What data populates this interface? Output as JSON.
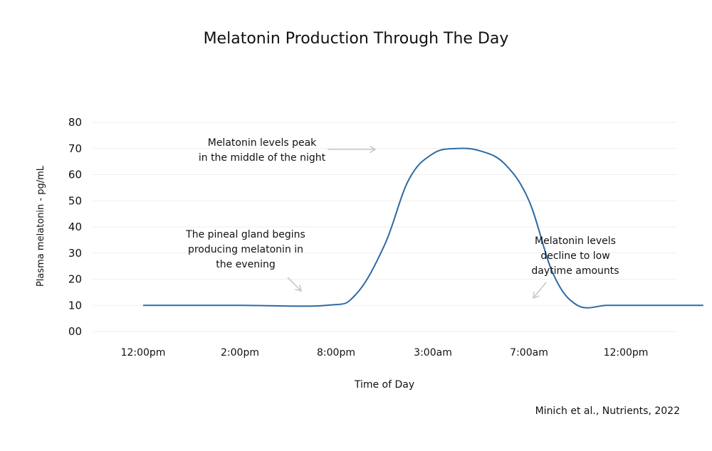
{
  "chart_data": {
    "type": "line",
    "title": "Melatonin Production Through The Day",
    "xlabel": "Time of Day",
    "ylabel": "Plasma melatonin - pg/mL",
    "y_ticks": [
      "00",
      "10",
      "20",
      "30",
      "40",
      "50",
      "60",
      "70",
      "80"
    ],
    "ylim": [
      0,
      80
    ],
    "categories": [
      "12:00pm",
      "2:00pm",
      "8:00pm",
      "3:00am",
      "7:00am",
      "12:00pm"
    ],
    "grid": true,
    "color": "#2f6aa5",
    "series": [
      {
        "x": [
          0.0,
          1.0,
          1.9,
          2.2,
          2.5,
          2.75,
          3.0,
          3.25,
          3.5,
          3.75,
          4.0,
          4.25,
          4.5,
          4.8,
          5.0,
          5.8
        ],
        "values": [
          10,
          10,
          10,
          14,
          33,
          58,
          68,
          70,
          69,
          64,
          50,
          22,
          10,
          10,
          10,
          10
        ]
      }
    ],
    "annotations": [
      {
        "text": "The pineal gland begins producing melatonin in the evening",
        "lines": [
          "The pineal gland begins",
          "producing melatonin in",
          "the evening"
        ]
      },
      {
        "text": "Melatonin levels peak in the middle of the night",
        "lines": [
          "Melatonin levels peak",
          "in the middle of the night"
        ]
      },
      {
        "text": "Melatonin levels decline to low daytime amounts",
        "lines": [
          "Melatonin levels",
          "decline to low",
          "daytime amounts"
        ]
      }
    ],
    "source": "Minich et al., Nutrients, 2022"
  }
}
